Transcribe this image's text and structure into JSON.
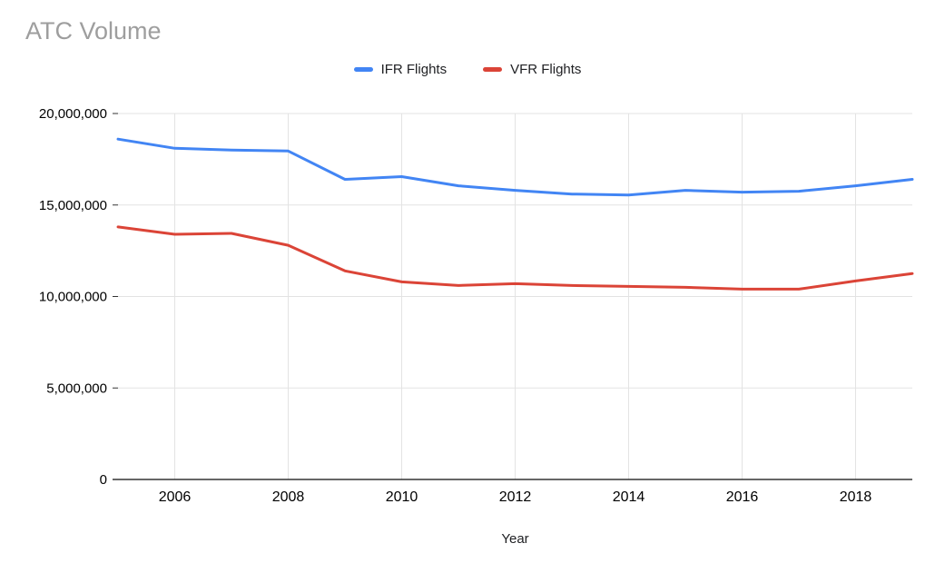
{
  "chart_data": {
    "type": "line",
    "title": "ATC Volume",
    "xlabel": "Year",
    "ylabel": "",
    "legend_position": "top",
    "grid": true,
    "xlim": [
      2005,
      2019
    ],
    "ylim": [
      0,
      20000000
    ],
    "x_ticks": [
      2006,
      2008,
      2010,
      2012,
      2014,
      2016,
      2018
    ],
    "y_ticks": [
      0,
      5000000,
      10000000,
      15000000,
      20000000
    ],
    "y_tick_labels": [
      "0",
      "5,000,000",
      "10,000,000",
      "15,000,000",
      "20,000,000"
    ],
    "x": [
      2005,
      2006,
      2007,
      2008,
      2009,
      2010,
      2011,
      2012,
      2013,
      2014,
      2015,
      2016,
      2017,
      2018,
      2019
    ],
    "series": [
      {
        "name": "IFR Flights",
        "color": "#4285f4",
        "values": [
          18600000,
          18100000,
          18000000,
          17950000,
          16400000,
          16550000,
          16050000,
          15800000,
          15600000,
          15550000,
          15800000,
          15700000,
          15750000,
          16050000,
          16400000
        ]
      },
      {
        "name": "VFR Flights",
        "color": "#db4437",
        "values": [
          13800000,
          13400000,
          13450000,
          12800000,
          11400000,
          10800000,
          10600000,
          10700000,
          10600000,
          10550000,
          10500000,
          10400000,
          10400000,
          10850000,
          11250000
        ]
      }
    ]
  }
}
